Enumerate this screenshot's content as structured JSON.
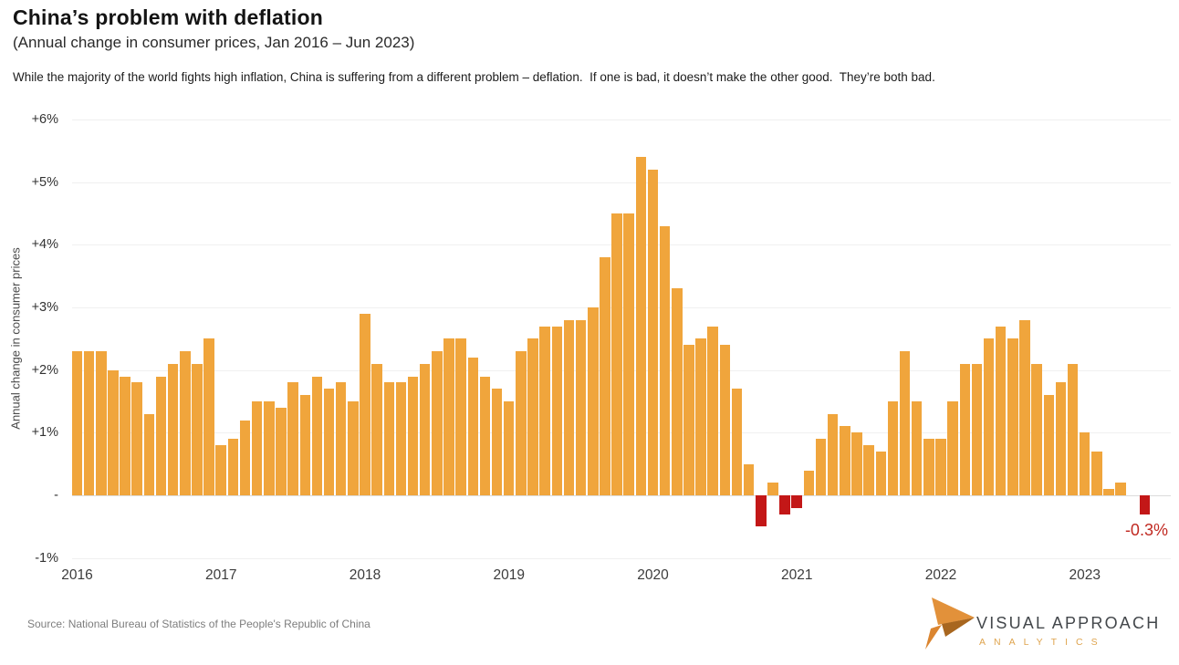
{
  "header": {
    "title": "China’s problem with deflation",
    "subtitle": "(Annual change in consumer prices, Jan 2016 – Jun 2023)",
    "description": "While the majority of the world fights high inflation, China is suffering from a different problem – deflation.  If one is bad, it doesn’t make the other good.  They’re both bad."
  },
  "chart_data": {
    "type": "bar",
    "title": "China’s problem with deflation",
    "subtitle": "(Annual change in consumer prices, Jan 2016 – Jun 2023)",
    "ylabel": "Annual change in consumer prices",
    "ylim": [
      -1,
      6
    ],
    "grid": true,
    "ytick_values": [
      6,
      5,
      4,
      3,
      2,
      1,
      0,
      -1
    ],
    "ytick_labels": [
      "+6%",
      "+5%",
      "+4%",
      "+3%",
      "+2%",
      "+1%",
      "-",
      "-1%"
    ],
    "x_year_labels": [
      "2016",
      "2017",
      "2018",
      "2019",
      "2020",
      "2021",
      "2022",
      "2023"
    ],
    "year_tick_indices": [
      0,
      12,
      24,
      36,
      48,
      60,
      72,
      84
    ],
    "values": [
      2.3,
      2.3,
      2.3,
      2.0,
      1.9,
      1.8,
      1.3,
      1.9,
      2.1,
      2.3,
      2.1,
      2.5,
      0.8,
      0.9,
      1.2,
      1.5,
      1.5,
      1.4,
      1.8,
      1.6,
      1.9,
      1.7,
      1.8,
      1.5,
      2.9,
      2.1,
      1.8,
      1.8,
      1.9,
      2.1,
      2.3,
      2.5,
      2.5,
      2.2,
      1.9,
      1.7,
      1.5,
      2.3,
      2.5,
      2.7,
      2.7,
      2.8,
      2.8,
      3.0,
      3.8,
      4.5,
      4.5,
      5.4,
      5.2,
      4.3,
      3.3,
      2.4,
      2.5,
      2.7,
      2.4,
      1.7,
      0.5,
      -0.5,
      0.2,
      -0.3,
      -0.2,
      0.4,
      0.9,
      1.3,
      1.1,
      1.0,
      0.8,
      0.7,
      1.5,
      2.3,
      1.5,
      0.9,
      0.9,
      1.5,
      2.1,
      2.1,
      2.5,
      2.7,
      2.5,
      2.8,
      2.1,
      1.6,
      1.8,
      2.1,
      1.0,
      0.7,
      0.1,
      0.2,
      0.0,
      -0.3
    ],
    "bar_color": "#F0A53C",
    "negative_color": "#C31717",
    "annotation": {
      "text": "-0.3%",
      "color": "#C12A22"
    },
    "legend": null
  },
  "footer": {
    "source": "Source: National Bureau of Statistics of the People's Republic of China"
  },
  "logo": {
    "name": "VISUAL APPROACH",
    "sub": "ANALYTICS"
  }
}
